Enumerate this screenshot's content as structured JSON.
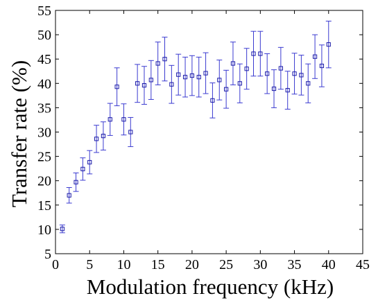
{
  "chart_data": {
    "type": "scatter",
    "title": "",
    "xlabel": "Modulation frequency (kHz)",
    "ylabel": "Transfer rate (%)",
    "xlim": [
      0,
      45
    ],
    "ylim": [
      5,
      55
    ],
    "x_ticks": [
      0,
      5,
      10,
      15,
      20,
      25,
      30,
      35,
      40,
      45
    ],
    "y_ticks": [
      5,
      10,
      15,
      20,
      25,
      30,
      35,
      40,
      45,
      50,
      55
    ],
    "grid": false,
    "marker": "square",
    "error_bars": true,
    "colors": {
      "marker": "#1a1aa8",
      "errorbar": "#3a3ad0",
      "axes": "#000000"
    },
    "x": [
      1,
      2,
      3,
      4,
      5,
      6,
      7,
      8,
      9,
      10,
      11,
      12,
      13,
      14,
      15,
      16,
      17,
      18,
      19,
      20,
      21,
      22,
      23,
      24,
      25,
      26,
      27,
      28,
      29,
      30,
      31,
      32,
      33,
      34,
      35,
      36,
      37,
      38,
      39,
      40
    ],
    "y": [
      10.1,
      17.0,
      19.7,
      22.4,
      23.8,
      28.6,
      29.2,
      32.6,
      39.3,
      32.6,
      30.0,
      40.0,
      39.6,
      40.7,
      44.1,
      45.0,
      39.8,
      41.8,
      41.3,
      41.6,
      41.3,
      42.1,
      36.5,
      40.7,
      38.8,
      44.1,
      40.0,
      43.0,
      46.1,
      46.1,
      42.0,
      38.9,
      43.1,
      38.6,
      42.0,
      41.7,
      40.0,
      45.5,
      43.6,
      48.0
    ],
    "err_lower": [
      0.8,
      1.6,
      1.9,
      2.3,
      2.4,
      2.8,
      2.9,
      3.3,
      3.9,
      3.2,
      3.0,
      3.9,
      3.9,
      4.0,
      4.4,
      4.5,
      3.9,
      4.2,
      4.1,
      4.1,
      4.1,
      4.2,
      3.6,
      4.1,
      3.9,
      4.4,
      4.0,
      4.2,
      4.6,
      4.6,
      4.1,
      3.9,
      4.3,
      3.9,
      4.2,
      4.1,
      4.0,
      4.5,
      4.3,
      4.8
    ],
    "err_upper": [
      0.8,
      1.6,
      1.9,
      2.3,
      2.4,
      2.8,
      2.9,
      3.3,
      3.9,
      3.2,
      3.0,
      3.9,
      3.9,
      4.0,
      4.4,
      4.5,
      3.9,
      4.2,
      4.1,
      4.1,
      4.1,
      4.2,
      3.6,
      4.1,
      3.9,
      4.4,
      4.0,
      4.2,
      4.6,
      4.6,
      4.1,
      3.9,
      4.3,
      3.9,
      4.2,
      4.1,
      4.0,
      4.5,
      4.3,
      4.8
    ]
  }
}
